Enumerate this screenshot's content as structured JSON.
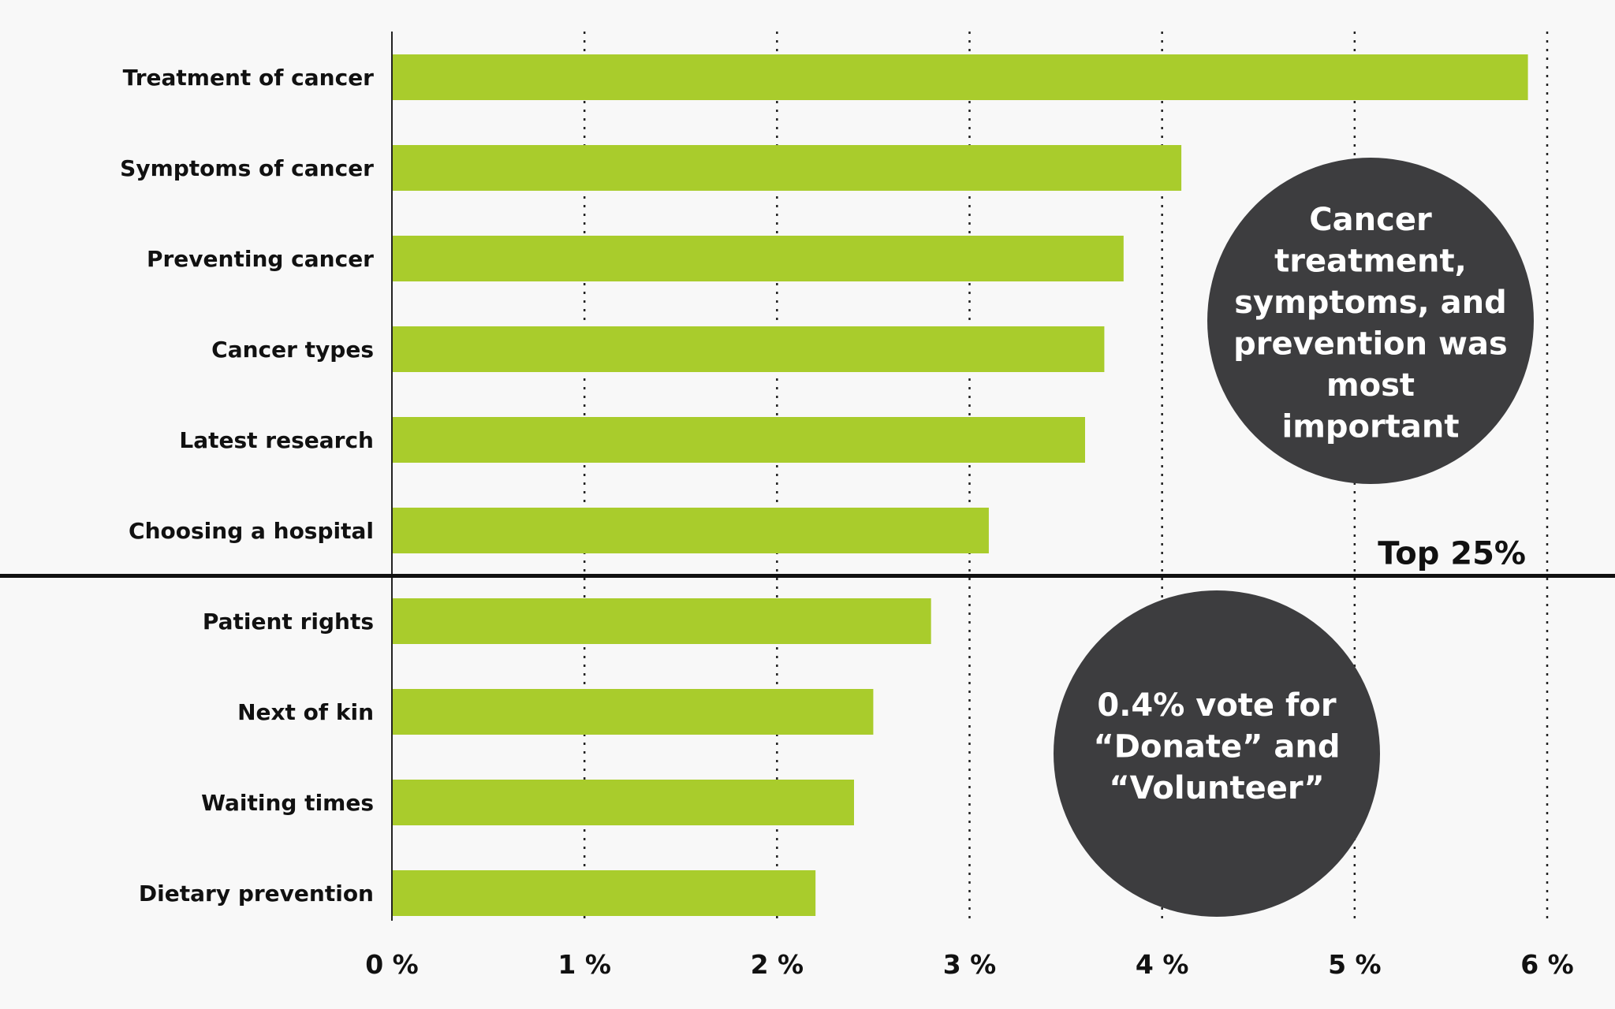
{
  "chart_data": {
    "type": "bar",
    "orientation": "horizontal",
    "categories": [
      "Treatment of cancer",
      "Symptoms of cancer",
      "Preventing cancer",
      "Cancer types",
      "Latest research",
      "Choosing a hospital",
      "Patient rights",
      "Next of kin",
      "Waiting times",
      "Dietary prevention"
    ],
    "values": [
      5.9,
      4.1,
      3.8,
      3.7,
      3.6,
      3.1,
      2.8,
      2.5,
      2.4,
      2.2
    ],
    "xlim": [
      0,
      6
    ],
    "x_ticks": [
      "0 %",
      "1 %",
      "2 %",
      "3 %",
      "4 %",
      "5 %",
      "6 %"
    ],
    "grid": "vertical dotted",
    "bar_color": "#a9cc2c",
    "threshold_line": {
      "label": "Top 25%",
      "after_category_index": 5
    },
    "annotations": [
      {
        "lines": [
          "Cancer",
          "treatment,",
          "symptoms, and",
          "prevention was",
          "most",
          "important"
        ],
        "color": "#3d3d3f",
        "text_color": "#ffffff"
      },
      {
        "lines": [
          "0.4% vote for",
          "“Donate” and",
          "“Volunteer”"
        ],
        "color": "#3d3d3f",
        "text_color": "#ffffff"
      }
    ]
  }
}
